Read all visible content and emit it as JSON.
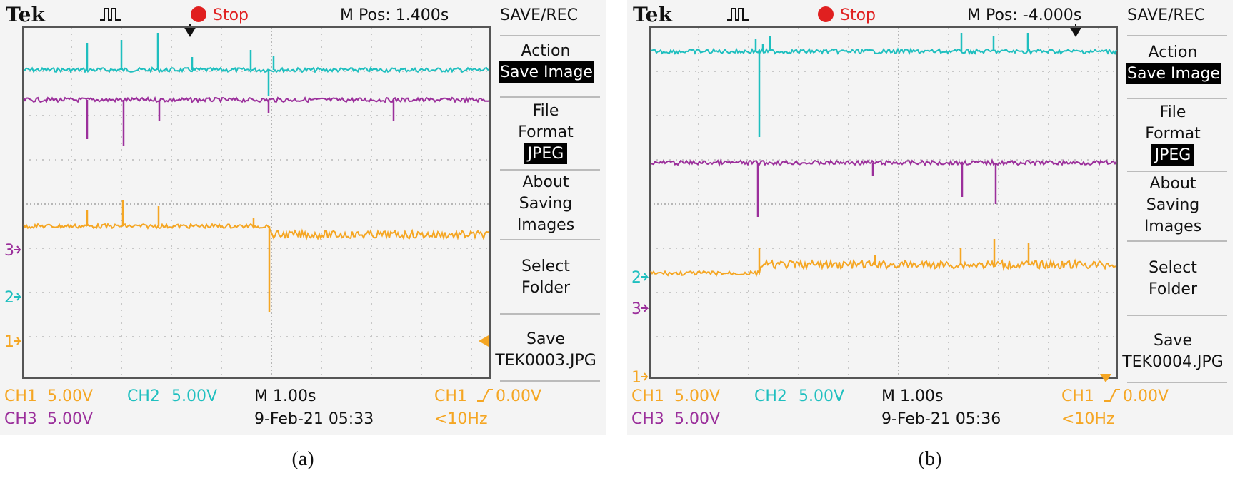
{
  "figures": [
    {
      "id": "a",
      "caption": "(a)",
      "brand": "Tek",
      "run_state": "Stop",
      "m_pos": "M Pos: 1.400s",
      "menu": {
        "title": "SAVE/REC",
        "action_label": "Action",
        "action_value": "Save Image",
        "file_format_line1": "File",
        "file_format_line2": "Format",
        "file_format_value": "JPEG",
        "about_line1": "About",
        "about_line2": "Saving",
        "about_line3": "Images",
        "select_line1": "Select",
        "select_line2": "Folder",
        "save_line1": "Save",
        "save_file": "TEK0003.JPG"
      },
      "markers": {
        "ch3": "3",
        "ch2": "2",
        "ch1": "1"
      },
      "status": {
        "ch1_label": "CH1",
        "ch1_scale": "5.00V",
        "ch2_label": "CH2",
        "ch2_scale": "5.00V",
        "ch3_label": "CH3",
        "ch3_scale": "5.00V",
        "timebase": "M 1.00s",
        "datetime": "9-Feb-21 05:33",
        "trig_source": "CH1",
        "trig_level": "0.00V",
        "trig_freq": "<10Hz"
      }
    },
    {
      "id": "b",
      "caption": "(b)",
      "brand": "Tek",
      "run_state": "Stop",
      "m_pos": "M Pos: -4.000s",
      "menu": {
        "title": "SAVE/REC",
        "action_label": "Action",
        "action_value": "Save Image",
        "file_format_line1": "File",
        "file_format_line2": "Format",
        "file_format_value": "JPEG",
        "about_line1": "About",
        "about_line2": "Saving",
        "about_line3": "Images",
        "select_line1": "Select",
        "select_line2": "Folder",
        "save_line1": "Save",
        "save_file": "TEK0004.JPG"
      },
      "markers": {
        "ch2": "2",
        "ch3": "3",
        "ch1": "1"
      },
      "status": {
        "ch1_label": "CH1",
        "ch1_scale": "5.00V",
        "ch2_label": "CH2",
        "ch2_scale": "5.00V",
        "ch3_label": "CH3",
        "ch3_scale": "5.00V",
        "timebase": "M 1.00s",
        "datetime": "9-Feb-21 05:36",
        "trig_source": "CH1",
        "trig_level": "0.00V",
        "trig_freq": "<10Hz"
      }
    }
  ],
  "colors": {
    "ch1": "#f5a623",
    "ch2": "#1fbfbf",
    "ch3": "#9b2f9b",
    "stop": "#e02020",
    "grid": "#9a9a9a"
  }
}
